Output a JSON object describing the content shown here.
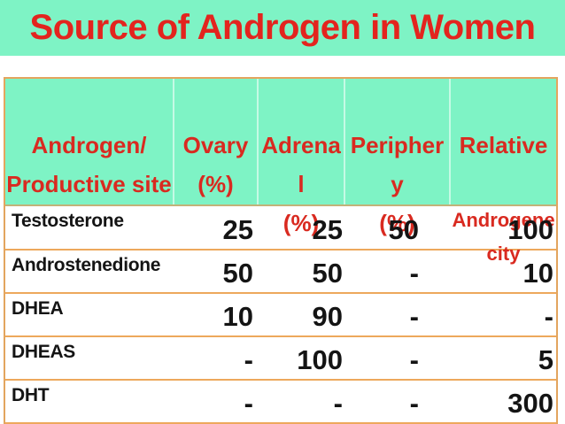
{
  "title": "Source of Androgen in Women",
  "colors": {
    "band_background": "#7ef3c5",
    "title_red": "#e3241e",
    "header_red": "#d92a20",
    "table_border_orange": "#e3a55e",
    "header_bottom_khaki": "#c2b279",
    "body_text": "#141414",
    "row_background": "#ffffff"
  },
  "table": {
    "header": {
      "cols": [
        {
          "text": "Androgen/\nProductive site"
        },
        {
          "text": "Ovary\n(%)"
        },
        {
          "text": "Adrena\nl\n(%)"
        },
        {
          "text": "Peripher\ny\n(%)"
        },
        {
          "text": "Relative",
          "subtext": "Androgene\ncity"
        }
      ]
    },
    "rows": [
      {
        "label": "Testosterone",
        "values": [
          "25",
          "25",
          "50",
          "100"
        ]
      },
      {
        "label": "Androstenedione",
        "values": [
          "50",
          "50",
          "-",
          "10"
        ]
      },
      {
        "label": "DHEA",
        "values": [
          "10",
          "90",
          "-",
          "-"
        ]
      },
      {
        "label": "DHEAS",
        "values": [
          "-",
          "100",
          "-",
          "5"
        ]
      },
      {
        "label": "DHT",
        "values": [
          "-",
          "-",
          "-",
          "300"
        ]
      }
    ]
  }
}
